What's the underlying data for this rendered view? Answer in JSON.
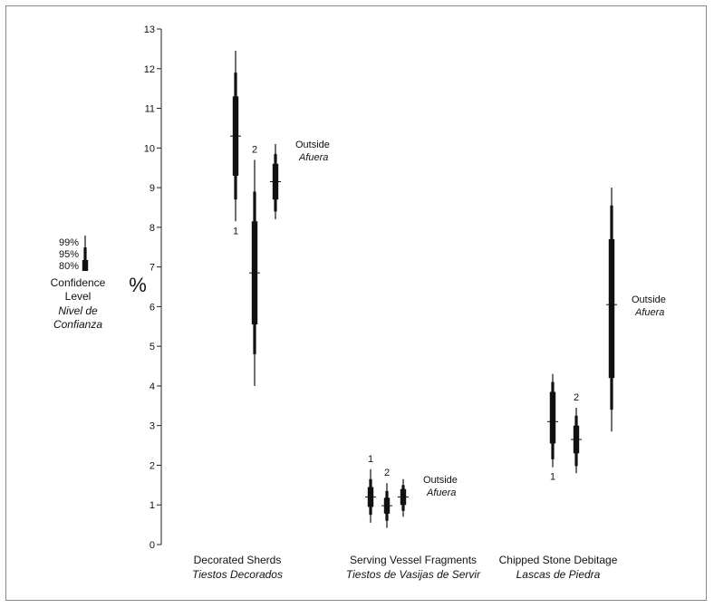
{
  "chart_data": {
    "type": "confidence-interval",
    "ylabel": "%",
    "ylim": [
      0,
      13
    ],
    "yticks": [
      "0",
      "1",
      "2",
      "3",
      "4",
      "5",
      "6",
      "7",
      "8",
      "9",
      "10",
      "11",
      "12",
      "13"
    ],
    "grid": false,
    "legend": {
      "placement": "left",
      "levels": [
        "99%",
        "95%",
        "80%"
      ],
      "title_lines": [
        "Confidence",
        "Level"
      ],
      "title_italic_lines": [
        "Nivel de",
        "Confianza"
      ]
    },
    "categories": [
      {
        "label": "Decorated Sherds",
        "label_es": "Tiestos Decorados"
      },
      {
        "label": "Serving Vessel Fragments",
        "label_es": "Tiestos de Vasijas de Servir"
      },
      {
        "label": "Chipped Stone Debitage",
        "label_es": "Lascas de Piedra"
      }
    ],
    "series": [
      {
        "category": 0,
        "label": "1",
        "label_pos": "below",
        "mean": 10.3,
        "ci80": [
          9.3,
          11.3
        ],
        "ci95": [
          8.7,
          11.9
        ],
        "ci99": [
          8.15,
          12.45
        ]
      },
      {
        "category": 0,
        "label": "2",
        "label_pos": "above",
        "mean": 6.85,
        "ci80": [
          5.55,
          8.15
        ],
        "ci95": [
          4.8,
          8.9
        ],
        "ci99": [
          4.0,
          9.7
        ]
      },
      {
        "category": 0,
        "label": "Outside",
        "label_es": "Afuera",
        "label_pos": "right",
        "mean": 9.15,
        "ci80": [
          8.7,
          9.6
        ],
        "ci95": [
          8.4,
          9.85
        ],
        "ci99": [
          8.2,
          10.1
        ]
      },
      {
        "category": 1,
        "label": "1",
        "label_pos": "above",
        "mean": 1.2,
        "ci80": [
          0.95,
          1.45
        ],
        "ci95": [
          0.75,
          1.65
        ],
        "ci99": [
          0.55,
          1.9
        ]
      },
      {
        "category": 1,
        "label": "2",
        "label_pos": "above",
        "mean": 0.98,
        "ci80": [
          0.78,
          1.18
        ],
        "ci95": [
          0.6,
          1.35
        ],
        "ci99": [
          0.42,
          1.55
        ]
      },
      {
        "category": 1,
        "label": "Outside",
        "label_es": "Afuera",
        "label_pos": "right",
        "mean": 1.2,
        "ci80": [
          1.0,
          1.4
        ],
        "ci95": [
          0.85,
          1.5
        ],
        "ci99": [
          0.7,
          1.65
        ]
      },
      {
        "category": 2,
        "label": "1",
        "label_pos": "below",
        "mean": 3.1,
        "ci80": [
          2.55,
          3.85
        ],
        "ci95": [
          2.15,
          4.1
        ],
        "ci99": [
          1.95,
          4.3
        ]
      },
      {
        "category": 2,
        "label": "2",
        "label_pos": "above",
        "mean": 2.65,
        "ci80": [
          2.3,
          3.0
        ],
        "ci95": [
          1.98,
          3.25
        ],
        "ci99": [
          1.8,
          3.45
        ]
      },
      {
        "category": 2,
        "label": "Outside",
        "label_es": "Afuera",
        "label_pos": "right",
        "mean": 6.05,
        "ci80": [
          4.2,
          7.7
        ],
        "ci95": [
          3.4,
          8.55
        ],
        "ci99": [
          2.85,
          9.0
        ]
      }
    ]
  }
}
